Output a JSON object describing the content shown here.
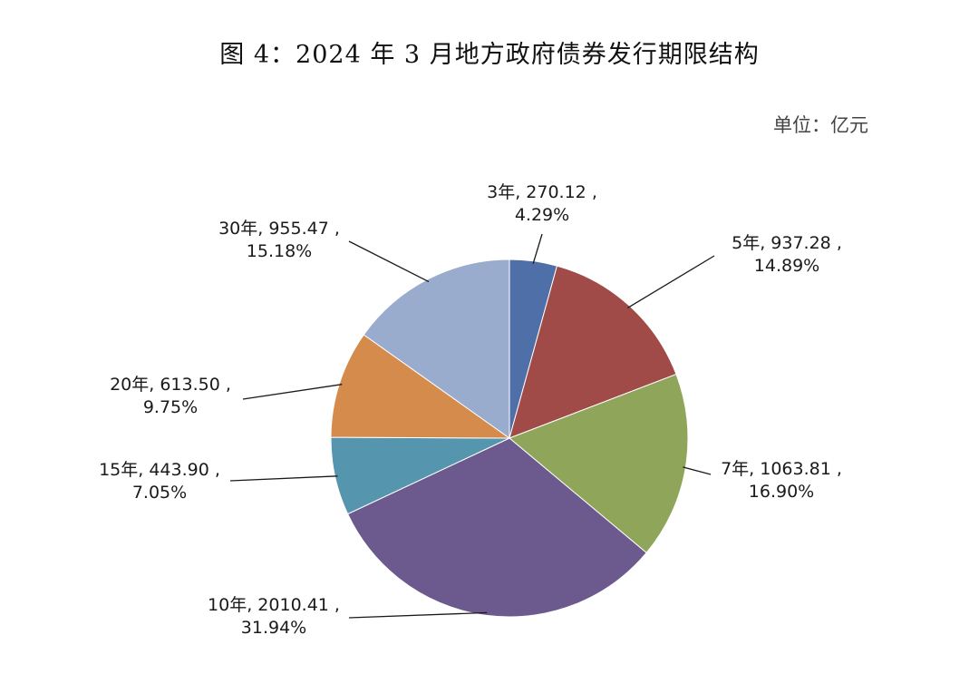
{
  "title": "图 4：2024 年 3 月地方政府债券发行期限结构",
  "unit_label": "单位：亿元",
  "chart_data": {
    "type": "pie",
    "title": "图 4：2024 年 3 月地方政府债券发行期限结构",
    "unit": "单位：亿元",
    "slices": [
      {
        "label": "3年",
        "value": 270.12,
        "percent": "4.29%",
        "line1": "3年, 270.12 ,",
        "line2": "4.29%",
        "color": "#4f6fa8"
      },
      {
        "label": "5年",
        "value": 937.28,
        "percent": "14.89%",
        "line1": "5年, 937.28 ,",
        "line2": "14.89%",
        "color": "#a04b48"
      },
      {
        "label": "7年",
        "value": 1063.81,
        "percent": "16.90%",
        "line1": "7年, 1063.81 ,",
        "line2": "16.90%",
        "color": "#8ea55a"
      },
      {
        "label": "10年",
        "value": 2010.41,
        "percent": "31.94%",
        "line1": "10年, 2010.41 ,",
        "line2": "31.94%",
        "color": "#6c5a8f"
      },
      {
        "label": "15年",
        "value": 443.9,
        "percent": "7.05%",
        "line1": "15年, 443.90 ,",
        "line2": "7.05%",
        "color": "#5595ad"
      },
      {
        "label": "20年",
        "value": 613.5,
        "percent": "9.75%",
        "line1": "20年, 613.50 ,",
        "line2": "9.75%",
        "color": "#d48b4c"
      },
      {
        "label": "30年",
        "value": 955.47,
        "percent": "15.18%",
        "line1": "30年, 955.47 ,",
        "line2": "15.18%",
        "color": "#9aaccd"
      }
    ]
  }
}
